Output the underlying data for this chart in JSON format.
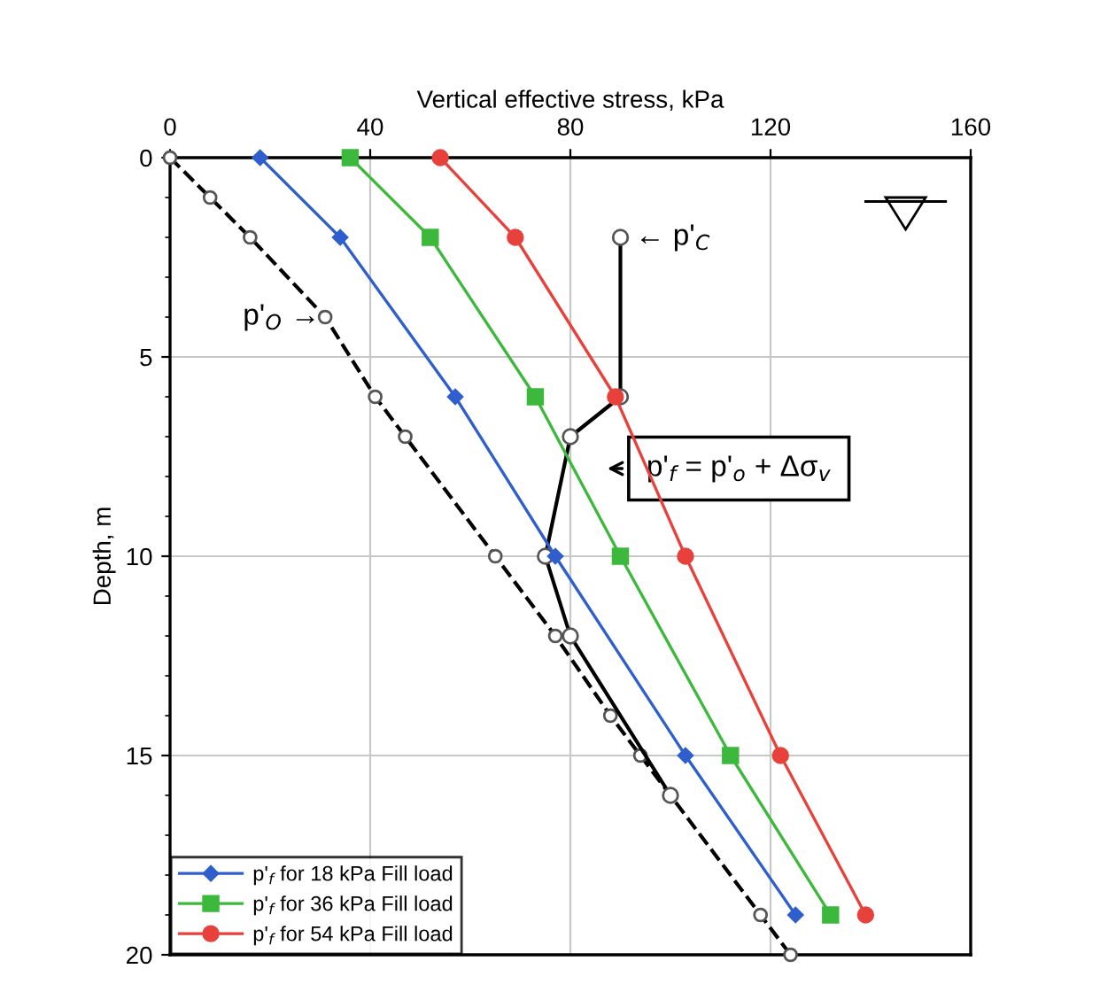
{
  "chart_data": {
    "type": "line",
    "xlabel": "Vertical effective stress, kPa",
    "ylabel": "Depth, m",
    "xlim": [
      0,
      160
    ],
    "xticks": [
      0,
      40,
      80,
      120,
      160
    ],
    "ylim": [
      20,
      0
    ],
    "yticks": [
      0,
      {
        "value": 1,
        "label": null
      },
      {
        "value": 2,
        "label": null
      },
      {
        "value": 3,
        "label": null
      },
      {
        "value": 4,
        "label": null
      },
      5,
      {
        "value": 6,
        "label": null
      },
      {
        "value": 7,
        "label": null
      },
      {
        "value": 8,
        "label": null
      },
      {
        "value": 9,
        "label": null
      },
      10,
      {
        "value": 11,
        "label": null
      },
      {
        "value": 12,
        "label": null
      },
      {
        "value": 13,
        "label": null
      },
      {
        "value": 14,
        "label": null
      },
      15,
      {
        "value": 16,
        "label": null
      },
      {
        "value": 17,
        "label": null
      },
      {
        "value": 18,
        "label": null
      },
      {
        "value": 19,
        "label": null
      },
      20
    ],
    "orientation": "horizontal",
    "grid": true,
    "legend": "bottom left",
    "series": [
      {
        "name": "p'$_{f}$ for 18 kPa Fill load",
        "color": "#2e5fcc",
        "marker": "diamond",
        "line_style": "solid",
        "x": [
          0,
          2,
          6,
          10,
          15,
          19
        ],
        "values": [
          18,
          34,
          57,
          77,
          103,
          125
        ]
      },
      {
        "name": "p'$_{f}$ for 36 kPa Fill load",
        "color": "#3cb83c",
        "marker": "square",
        "line_style": "solid",
        "x": [
          0,
          2,
          6,
          10,
          15,
          19
        ],
        "values": [
          36,
          52,
          73,
          90,
          112,
          132
        ]
      },
      {
        "name": "p'$_{f}$ for 54 kPa Fill load",
        "color": "#e8413c",
        "marker": "circle",
        "line_style": "solid",
        "x": [
          0,
          2,
          6,
          10,
          15,
          19
        ],
        "values": [
          54,
          69,
          89,
          103,
          122,
          139
        ]
      },
      {
        "color": "#000000",
        "marker": "circle",
        "line_style": "dashed",
        "x": [
          0,
          1,
          2,
          4,
          6,
          7,
          10,
          12,
          14,
          15,
          16,
          19,
          20
        ],
        "values": [
          0,
          8,
          16,
          31,
          41,
          47,
          65,
          77,
          88,
          94,
          100,
          118,
          124
        ]
      },
      {
        "color": "#000000",
        "marker": "circle",
        "line_style": "solid",
        "x": [
          2,
          6,
          7,
          10,
          12,
          16
        ],
        "values": [
          90,
          90,
          80,
          75,
          80,
          100
        ]
      }
    ],
    "annotations": [
      {
        "text": "← p'$_{C}$",
        "x": 90,
        "y": 2
      },
      {
        "text": "p'$_{O}$ →",
        "x": 31,
        "y": 4
      },
      "p'$_{f}$ = p'$_{o}$ + Δσ$_{v}$"
    ]
  }
}
